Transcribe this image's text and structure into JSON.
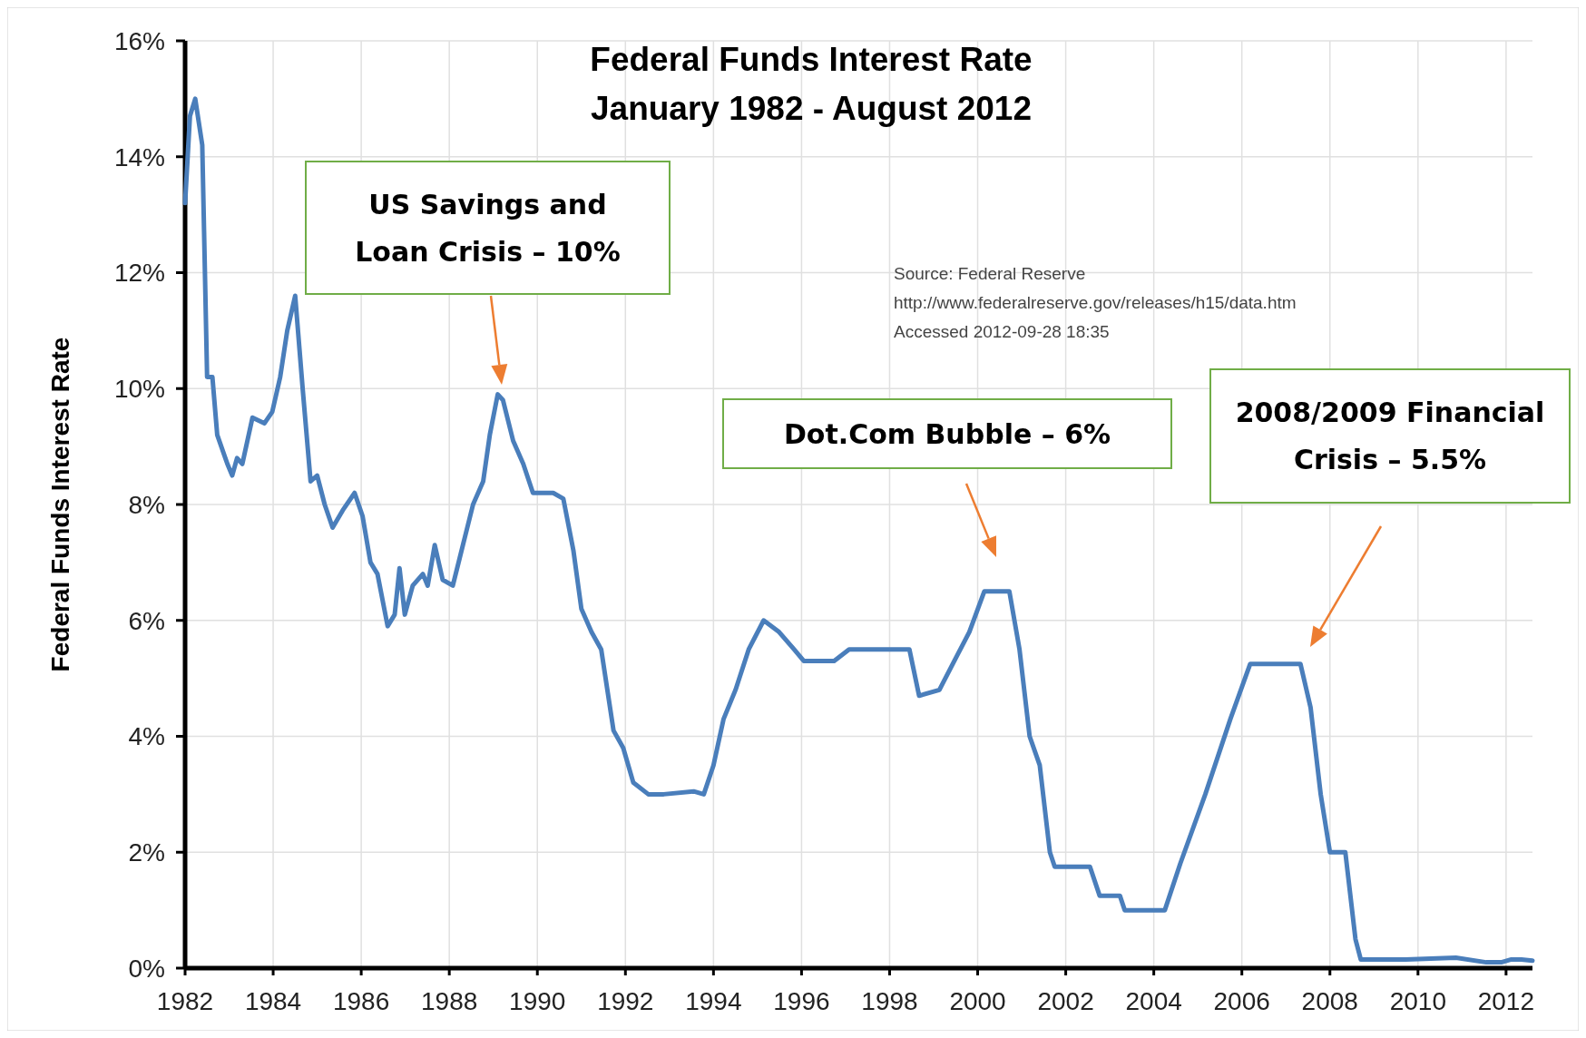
{
  "chart_data": {
    "type": "line",
    "title": "Federal Funds Interest Rate\nJanuary 1982 - August 2012",
    "ylabel": "Federal Funds Interest Rate",
    "x": [
      1982.0,
      1982.11,
      1982.23,
      1982.39,
      1982.5,
      1982.62,
      1982.73,
      1982.96,
      1983.07,
      1983.18,
      1983.3,
      1983.53,
      1983.8,
      1983.98,
      1984.16,
      1984.32,
      1984.5,
      1984.67,
      1984.85,
      1985.0,
      1985.17,
      1985.35,
      1985.58,
      1985.85,
      1986.03,
      1986.21,
      1986.37,
      1986.6,
      1986.76,
      1986.87,
      1986.99,
      1987.17,
      1987.4,
      1987.51,
      1987.67,
      1987.85,
      1988.08,
      1988.31,
      1988.54,
      1988.77,
      1988.92,
      1989.1,
      1989.22,
      1989.45,
      1989.68,
      1989.9,
      1990.36,
      1990.59,
      1990.82,
      1991.0,
      1991.23,
      1991.45,
      1991.73,
      1991.95,
      1992.18,
      1992.52,
      1992.87,
      1993.55,
      1993.78,
      1994.0,
      1994.23,
      1994.5,
      1994.8,
      1995.14,
      1995.49,
      1995.83,
      1996.05,
      1996.74,
      1997.08,
      1997.88,
      1998.45,
      1998.67,
      1999.13,
      1999.47,
      1999.81,
      2000.15,
      2000.72,
      2000.95,
      2001.18,
      2001.41,
      2001.64,
      2001.75,
      2002.55,
      2002.77,
      2003.23,
      2003.34,
      2004.25,
      2004.6,
      2005.17,
      2005.74,
      2006.19,
      2007.33,
      2007.56,
      2007.79,
      2008.0,
      2008.35,
      2008.58,
      2008.7,
      2009.72,
      2010.86,
      2011.55,
      2011.89,
      2012.12,
      2012.35,
      2012.6
    ],
    "series": [
      {
        "color": "#4a7ebb",
        "values": [
          13.2,
          14.7,
          15.0,
          14.2,
          10.2,
          10.2,
          9.2,
          8.7,
          8.5,
          8.8,
          8.7,
          9.5,
          9.4,
          9.6,
          10.2,
          11.0,
          11.6,
          10.0,
          8.4,
          8.5,
          8.0,
          7.6,
          7.9,
          8.2,
          7.8,
          7.0,
          6.8,
          5.9,
          6.1,
          6.9,
          6.1,
          6.6,
          6.8,
          6.6,
          7.3,
          6.7,
          6.6,
          7.3,
          8.0,
          8.4,
          9.2,
          9.9,
          9.8,
          9.1,
          8.7,
          8.2,
          8.2,
          8.1,
          7.2,
          6.2,
          5.8,
          5.5,
          4.1,
          3.8,
          3.2,
          3.0,
          3.0,
          3.05,
          3.0,
          3.5,
          4.3,
          4.8,
          5.5,
          6.0,
          5.8,
          5.5,
          5.3,
          5.3,
          5.5,
          5.5,
          5.5,
          4.7,
          4.8,
          5.3,
          5.8,
          6.5,
          6.5,
          5.5,
          4.0,
          3.5,
          2.0,
          1.75,
          1.75,
          1.25,
          1.25,
          1.0,
          1.0,
          1.8,
          3.0,
          4.3,
          5.25,
          5.25,
          4.5,
          3.0,
          2.0,
          2.0,
          0.5,
          0.15,
          0.15,
          0.18,
          0.1,
          0.1,
          0.15,
          0.15,
          0.13
        ]
      }
    ],
    "xlim": [
      1982,
      2012.6
    ],
    "xticks": [
      1982,
      1984,
      1986,
      1988,
      1990,
      1992,
      1994,
      1996,
      1998,
      2000,
      2002,
      2004,
      2006,
      2008,
      2010,
      2012
    ],
    "ylim": [
      0,
      16
    ],
    "yticks": [
      {
        "value": 0,
        "label": "0%"
      },
      {
        "value": 2,
        "label": "2%"
      },
      {
        "value": 4,
        "label": "4%"
      },
      {
        "value": 6,
        "label": "6%"
      },
      {
        "value": 8,
        "label": "8%"
      },
      {
        "value": 10,
        "label": "10%"
      },
      {
        "value": 12,
        "label": "12%"
      },
      {
        "value": 14,
        "label": "14%"
      },
      {
        "value": 16,
        "label": "16%"
      }
    ],
    "grid": true,
    "marker": "none",
    "line_style": "solid",
    "annotations": [
      "US Savings and Loan Crisis – 10%",
      "Dot.Com Bubble – 6%",
      "2008/2009 Financial Crisis – 5.5%",
      "Source: Federal Reserve\nhttp://www.federalreserve.gov/releases/h15/data.htm\nAccessed 2012-09-28 18:35"
    ]
  }
}
